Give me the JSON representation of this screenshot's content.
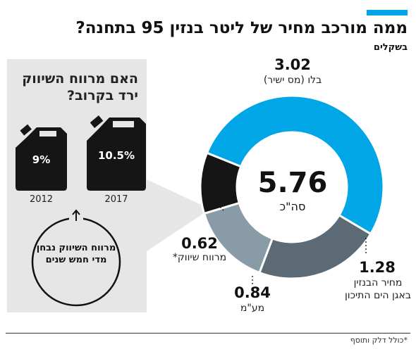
{
  "header": {
    "accent_color": "#00a6e6",
    "title": "ממה מורכב מחיר של ליטר בנזין 95 בתחנה?",
    "subtitle": "בשקלים"
  },
  "side_panel": {
    "question": "האם מרווח השיווק ירד בקרוב?",
    "cans": [
      {
        "year": "2012",
        "percent": "9%"
      },
      {
        "year": "2017",
        "percent": "10.5%"
      }
    ],
    "circle_note": "מרווח השיווק נבחן מדי חמש שנים"
  },
  "chart_data": {
    "type": "pie",
    "title": "ממה מורכב מחיר של ליטר בנזין 95 בתחנה?",
    "unit": "בשקלים",
    "total": {
      "value": "5.76",
      "label": "סה\"כ"
    },
    "slices": [
      {
        "label": "בלו (מס ישיר)",
        "value": 3.02,
        "color": "#00a6e6"
      },
      {
        "label": "מחיר הבנזין באגן הים התיכון",
        "value": 1.28,
        "color": "#5b6a75"
      },
      {
        "label": "מע\"מ",
        "value": 0.84,
        "color": "#8a9ba8"
      },
      {
        "label": "מרווח שיווק*",
        "value": 0.62,
        "color": "#151515"
      }
    ]
  },
  "labels": {
    "blu_value": "3.02",
    "blu_label": "בלו (מס ישיר)",
    "med_value": "1.28",
    "med_label": "מחיר הבנזין באגן הים התיכון",
    "vat_value": "0.84",
    "vat_label": "מע\"מ",
    "margin_value": "0.62",
    "margin_label": "מרווח שיווק*"
  },
  "footnote": "*כולל דלק ותוסף"
}
